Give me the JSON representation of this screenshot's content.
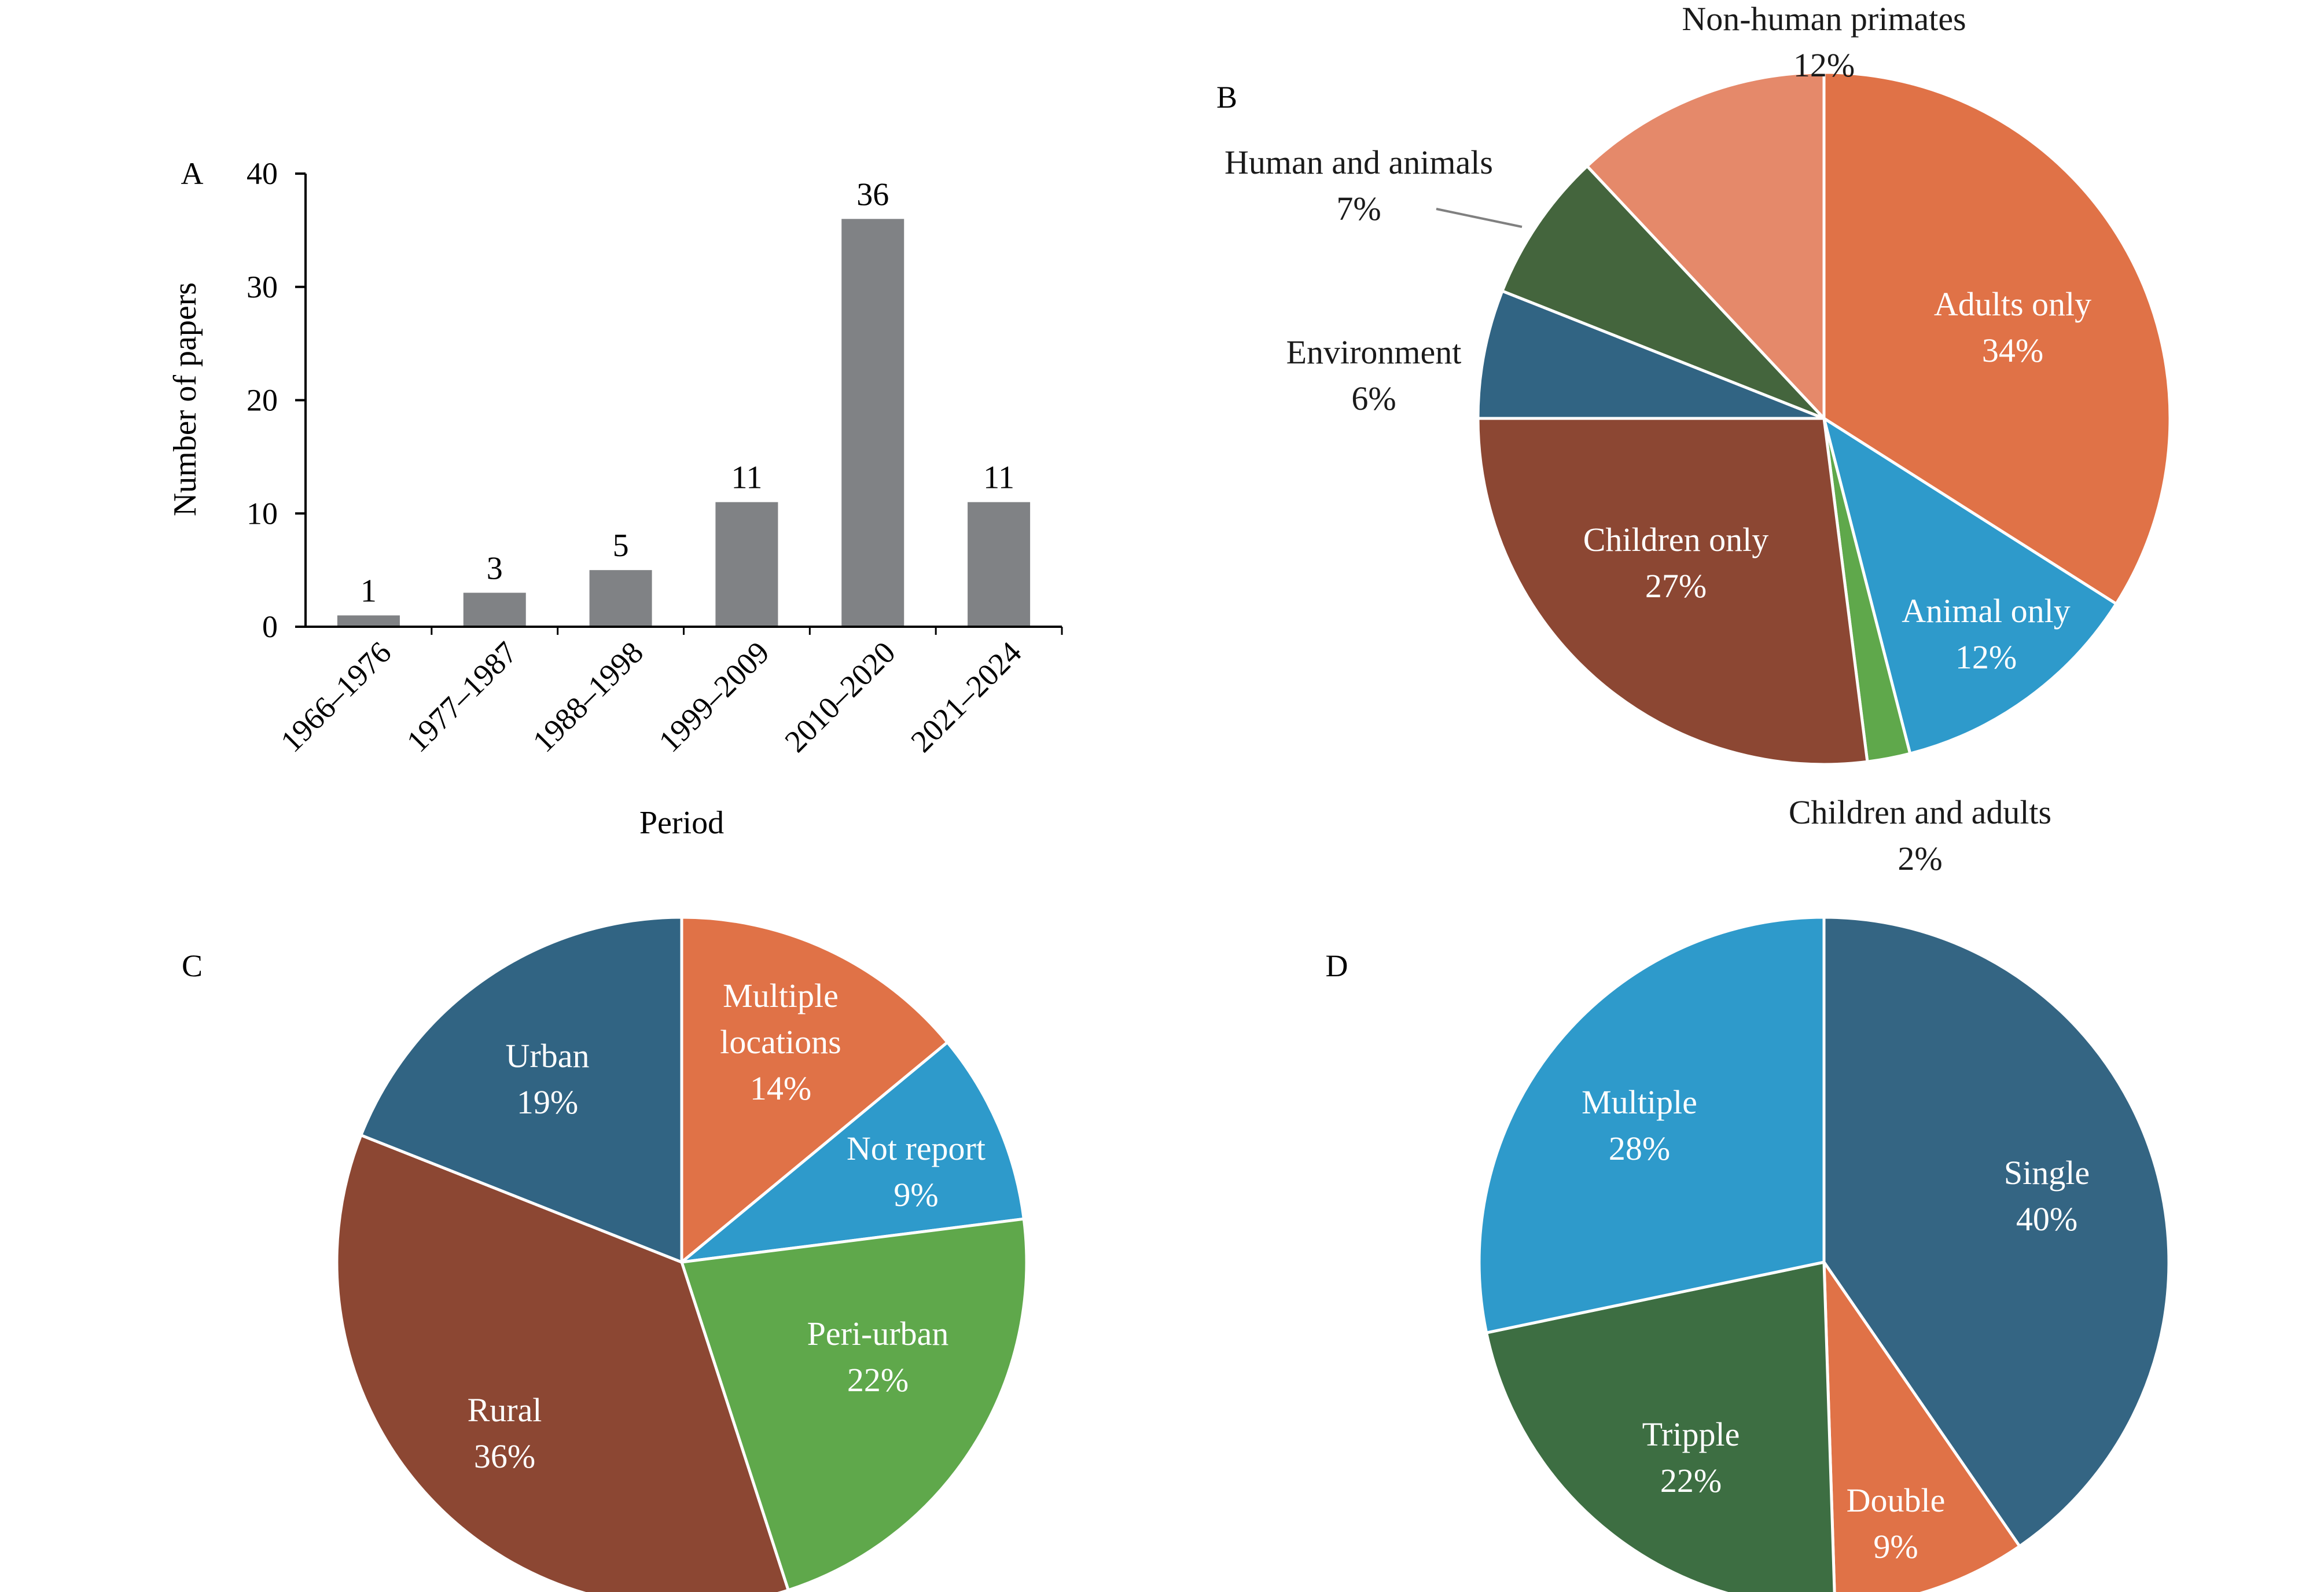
{
  "chart_data": [
    {
      "panel": "A",
      "type": "bar",
      "xlabel": "Period",
      "ylabel": "Number of papers",
      "ylim": [
        0,
        40
      ],
      "yticks": [
        0,
        10,
        20,
        30,
        40
      ],
      "categories": [
        "1966–1976",
        "1977–1987",
        "1988–1998",
        "1999–2009",
        "2010–2020",
        "2021–2024"
      ],
      "values": [
        1,
        3,
        5,
        11,
        36,
        11
      ],
      "bar_color": "#808285"
    },
    {
      "panel": "B",
      "type": "pie",
      "slices": [
        {
          "label": "Adults only",
          "value": 34,
          "text": "34%",
          "color": "#E07247"
        },
        {
          "label": "Animal only",
          "value": 12,
          "text": "12%",
          "color": "#2E9ACB"
        },
        {
          "label": "Children and adults",
          "value": 2,
          "text": "2%",
          "color": "#5FA84B"
        },
        {
          "label": "Children only",
          "value": 27,
          "text": "27%",
          "color": "#8C4733"
        },
        {
          "label": "Environment",
          "value": 6,
          "text": "6%",
          "color": "#316483"
        },
        {
          "label": "Human and animals",
          "value": 7,
          "text": "7%",
          "color": "#44653D"
        },
        {
          "label": "Non-human primates",
          "value": 12,
          "text": "12%",
          "color": "#E5896A"
        }
      ]
    },
    {
      "panel": "C",
      "type": "pie",
      "slices": [
        {
          "label": "Multiple locations",
          "value": 14,
          "text": "14%",
          "color": "#E07247"
        },
        {
          "label": "Not report",
          "value": 9,
          "text": "9%",
          "color": "#2E9ACB"
        },
        {
          "label": "Peri-urban",
          "value": 22,
          "text": "22%",
          "color": "#5FA84B"
        },
        {
          "label": "Rural",
          "value": 36,
          "text": "36%",
          "color": "#8C4733"
        },
        {
          "label": "Urban",
          "value": 19,
          "text": "19%",
          "color": "#316483"
        }
      ]
    },
    {
      "panel": "D",
      "type": "pie",
      "slices": [
        {
          "label": "Single",
          "value": 40,
          "text": "40%",
          "color": "#346583"
        },
        {
          "label": "Double",
          "value": 9,
          "text": "9%",
          "color": "#E07247"
        },
        {
          "label": "Tripple",
          "value": 22,
          "text": "22%",
          "color": "#3D6E42"
        },
        {
          "label": "Multiple",
          "value": 28,
          "text": "28%",
          "color": "#2E9ACB"
        }
      ]
    }
  ]
}
